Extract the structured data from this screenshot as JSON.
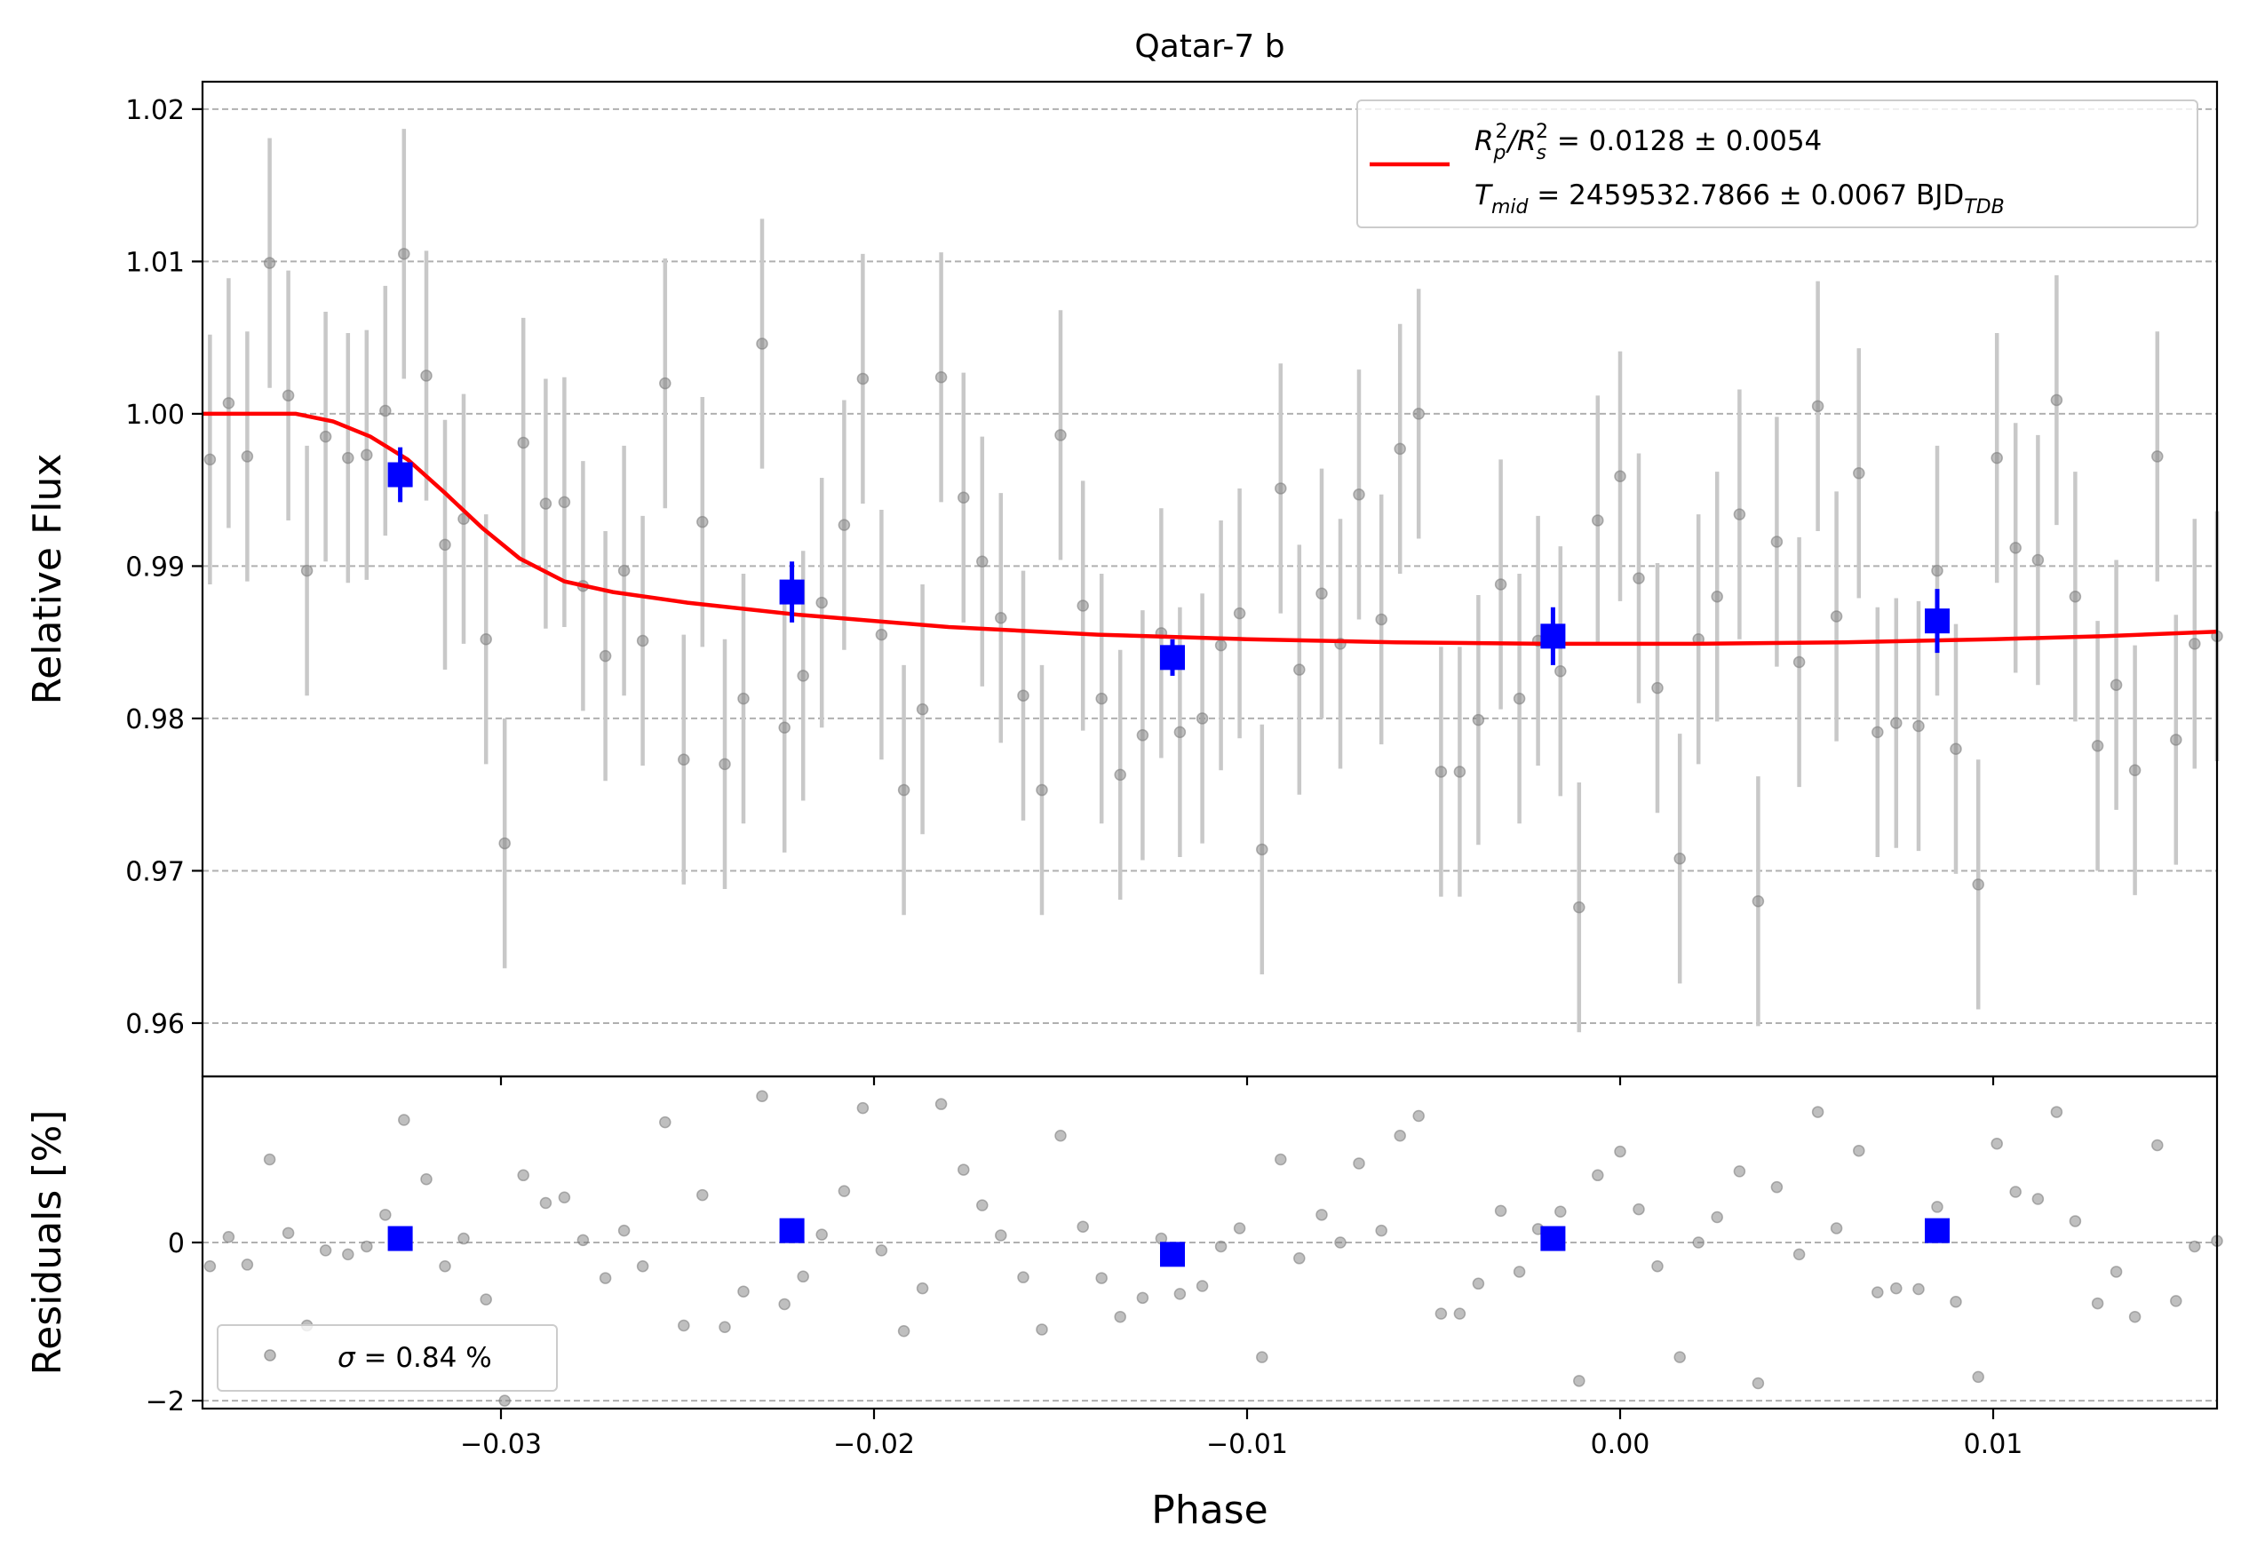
{
  "chart_data": {
    "type": "scatter",
    "title": "Qatar-7 b",
    "xlabel": "Phase",
    "xlim": [
      -0.038,
      0.016
    ],
    "x_ticks": [
      "−0.03",
      "−0.02",
      "−0.01",
      "0.00",
      "0.01"
    ],
    "x_tick_values": [
      -0.03,
      -0.02,
      -0.01,
      0.0,
      0.01
    ],
    "top_panel": {
      "ylabel": "Relative Flux",
      "ylim": [
        0.9565,
        1.0218
      ],
      "y_ticks": [
        "0.96",
        "0.97",
        "0.98",
        "0.99",
        "1.00",
        "1.01",
        "1.02"
      ],
      "y_tick_values": [
        0.96,
        0.97,
        0.98,
        0.99,
        1.0,
        1.01,
        1.02
      ],
      "grid": "horizontal dashed",
      "legend": {
        "placement": "top-right",
        "line1": {
          "base": "R",
          "sub1": "p",
          "sup1": "2",
          "slash": "/R",
          "sub2": "s",
          "sup2": "2",
          "rest": " = 0.0128 ± 0.0054"
        },
        "line2": {
          "base": "T",
          "sub": "mid",
          "rest": " = 2459532.7866 ± 0.0067 BJD",
          "suffix_sub": "TDB"
        }
      },
      "model": {
        "name": "model",
        "color": "#ff0000",
        "x": [
          -0.038,
          -0.0355,
          -0.0345,
          -0.0335,
          -0.0325,
          -0.0315,
          -0.0305,
          -0.0295,
          -0.0283,
          -0.027,
          -0.025,
          -0.022,
          -0.018,
          -0.014,
          -0.01,
          -0.006,
          -0.002,
          0.002,
          0.006,
          0.01,
          0.013,
          0.016
        ],
        "y": [
          1.0,
          1.0,
          0.9995,
          0.9985,
          0.997,
          0.9948,
          0.9925,
          0.9905,
          0.989,
          0.9883,
          0.9876,
          0.9868,
          0.986,
          0.9855,
          0.9852,
          0.985,
          0.9849,
          0.9849,
          0.985,
          0.9852,
          0.9854,
          0.9857
        ]
      },
      "data_series": {
        "name": "data",
        "color": "#808080",
        "x": [
          -0.0378,
          -0.0373,
          -0.0368,
          -0.0362,
          -0.0357,
          -0.0352,
          -0.0347,
          -0.0341,
          -0.0336,
          -0.0331,
          -0.0326,
          -0.032,
          -0.0315,
          -0.031,
          -0.0304,
          -0.0299,
          -0.0294,
          -0.0288,
          -0.0283,
          -0.0278,
          -0.0272,
          -0.0267,
          -0.0262,
          -0.0256,
          -0.0251,
          -0.0246,
          -0.024,
          -0.0235,
          -0.023,
          -0.0224,
          -0.0219,
          -0.0214,
          -0.0208,
          -0.0203,
          -0.0198,
          -0.0192,
          -0.0187,
          -0.0182,
          -0.0176,
          -0.0171,
          -0.0166,
          -0.016,
          -0.0155,
          -0.015,
          -0.0144,
          -0.0139,
          -0.0134,
          -0.0128,
          -0.0123,
          -0.0118,
          -0.0112,
          -0.0107,
          -0.0102,
          -0.0096,
          -0.0091,
          -0.0086,
          -0.008,
          -0.0075,
          -0.007,
          -0.0064,
          -0.0059,
          -0.0054,
          -0.0048,
          -0.0043,
          -0.0038,
          -0.0032,
          -0.0027,
          -0.0022,
          -0.0016,
          -0.0011,
          -0.0006,
          0.0,
          0.0005,
          0.001,
          0.0016,
          0.0021,
          0.0026,
          0.0032,
          0.0037,
          0.0042,
          0.0048,
          0.0053,
          0.0058,
          0.0064,
          0.0069,
          0.0074,
          0.008,
          0.0085,
          0.009,
          0.0096,
          0.0101,
          0.0106,
          0.0112,
          0.0117,
          0.0122,
          0.0128,
          0.0133,
          0.0138,
          0.0144,
          0.0149,
          0.0154,
          0.016
        ],
        "y": [
          0.997,
          1.0007,
          0.9972,
          1.0099,
          1.0012,
          0.9897,
          0.9985,
          0.9971,
          0.9973,
          1.0002,
          1.0105,
          1.0025,
          0.9914,
          0.9931,
          0.9852,
          0.9718,
          0.9981,
          0.9941,
          0.9942,
          0.9887,
          0.9841,
          0.9897,
          0.9851,
          1.002,
          0.9773,
          0.9929,
          0.977,
          0.9813,
          1.0046,
          0.9794,
          0.9828,
          0.9876,
          0.9927,
          1.0023,
          0.9855,
          0.9753,
          0.9806,
          1.0024,
          0.9945,
          0.9903,
          0.9866,
          0.9815,
          0.9753,
          0.9986,
          0.9874,
          0.9813,
          0.9763,
          0.9789,
          0.9856,
          0.9791,
          0.98,
          0.9848,
          0.9869,
          0.9714,
          0.9951,
          0.9832,
          0.9882,
          0.9849,
          0.9947,
          0.9865,
          0.9977,
          1.0,
          0.9765,
          0.9765,
          0.9799,
          0.9888,
          0.9813,
          0.9851,
          0.9831,
          0.9676,
          0.993,
          0.9959,
          0.9892,
          0.982,
          0.9708,
          0.9852,
          0.988,
          0.9934,
          0.968,
          0.9916,
          0.9837,
          1.0005,
          0.9867,
          0.9961,
          0.9791,
          0.9797,
          0.9795,
          0.9897,
          0.978,
          0.9691,
          0.9971,
          0.9912,
          0.9904,
          1.0009,
          0.988,
          0.9782,
          0.9822,
          0.9766,
          0.9972,
          0.9786,
          0.9849,
          0.9854
        ],
        "yerr": 0.0082
      },
      "binned_series": {
        "name": "binned",
        "color": "#0000ff",
        "x": [
          -0.0327,
          -0.0222,
          -0.012,
          -0.0018,
          0.0085
        ],
        "y": [
          0.996,
          0.9883,
          0.984,
          0.9854,
          0.9864
        ],
        "yerr": [
          0.0018,
          0.002,
          0.0012,
          0.0019,
          0.0021
        ]
      }
    },
    "bottom_panel": {
      "ylabel": "Residuals [%]",
      "ylim": [
        -2.1,
        2.1
      ],
      "y_ticks": [
        "−2",
        "0"
      ],
      "y_tick_values": [
        -2,
        0
      ],
      "legend": {
        "placement": "bottom-left",
        "label_prefix": "σ",
        "label_rest": " = 0.84 %"
      },
      "residuals": {
        "name": "residuals",
        "color": "#808080",
        "y": [
          -0.3,
          0.07,
          -0.28,
          1.05,
          0.12,
          -1.05,
          -0.1,
          -0.15,
          -0.05,
          0.35,
          1.55,
          0.8,
          -0.3,
          0.05,
          -0.72,
          -2.0,
          0.85,
          0.5,
          0.57,
          0.03,
          -0.45,
          0.15,
          -0.3,
          1.52,
          -1.05,
          0.6,
          -1.07,
          -0.62,
          1.85,
          -0.78,
          -0.43,
          0.1,
          0.65,
          1.7,
          -0.1,
          -1.12,
          -0.58,
          1.75,
          0.92,
          0.47,
          0.09,
          -0.44,
          -1.1,
          1.35,
          0.2,
          -0.45,
          -0.94,
          -0.7,
          0.05,
          -0.65,
          -0.55,
          -0.05,
          0.18,
          -1.45,
          1.05,
          -0.2,
          0.35,
          0.0,
          1.0,
          0.15,
          1.35,
          1.6,
          -0.9,
          -0.9,
          -0.52,
          0.4,
          -0.37,
          0.17,
          0.39,
          -1.75,
          0.85,
          1.15,
          0.42,
          -0.3,
          -1.45,
          0.0,
          0.32,
          0.9,
          -1.78,
          0.7,
          -0.15,
          1.65,
          0.18,
          1.16,
          -0.63,
          -0.58,
          -0.59,
          0.45,
          -0.75,
          -1.7,
          1.25,
          0.64,
          0.55,
          1.65,
          0.27,
          -0.77,
          -0.37,
          -0.94,
          1.23,
          -0.74,
          -0.05,
          0.02
        ]
      },
      "binned_residuals": {
        "name": "binned residuals",
        "color": "#0000ff",
        "y": [
          0.05,
          0.15,
          -0.15,
          0.05,
          0.15
        ]
      }
    }
  }
}
